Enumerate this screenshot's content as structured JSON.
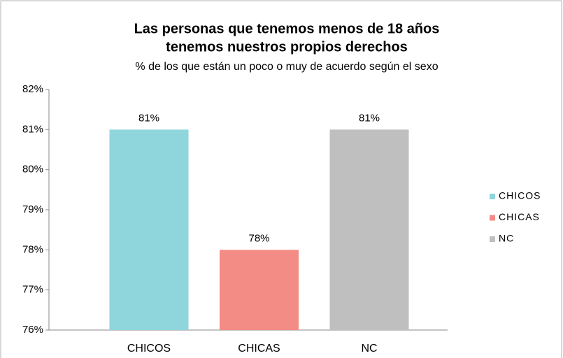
{
  "chart_data": {
    "type": "bar",
    "title": [
      "Las personas que tenemos menos de 18 años",
      "tenemos nuestros propios derechos"
    ],
    "subtitle": "% de los que están un poco o muy de acuerdo  según el sexo",
    "categories": [
      "CHICOS",
      "CHICAS",
      "NC"
    ],
    "values": [
      81,
      78,
      81
    ],
    "value_labels": [
      "81%",
      "78%",
      "81%"
    ],
    "colors": [
      "#8fd5dc",
      "#f28c84",
      "#bfbfbf"
    ],
    "ylim": [
      76,
      82
    ],
    "yticks": [
      {
        "value": 76,
        "label": "76%"
      },
      {
        "value": 77,
        "label": "77%"
      },
      {
        "value": 78,
        "label": "78%"
      },
      {
        "value": 79,
        "label": "79%"
      },
      {
        "value": 80,
        "label": "80%"
      },
      {
        "value": 81,
        "label": "81%"
      },
      {
        "value": 82,
        "label": "82%"
      }
    ],
    "grid": false,
    "legend": "right"
  }
}
